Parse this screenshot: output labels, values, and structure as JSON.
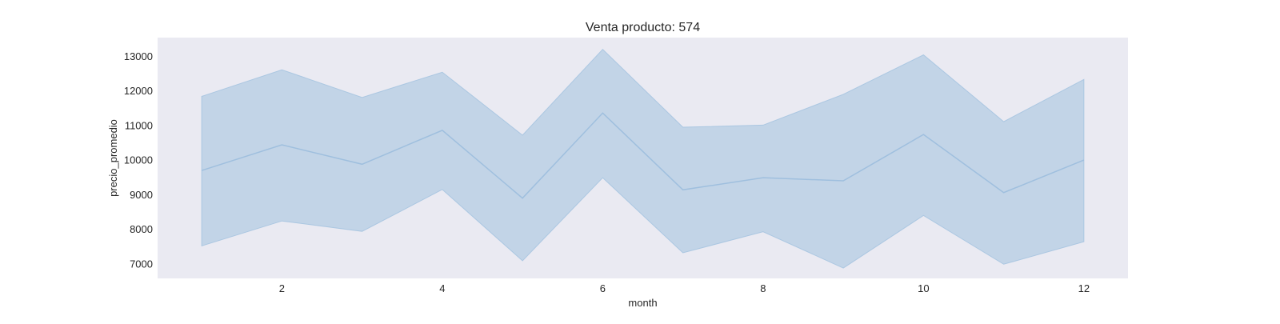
{
  "chart_data": {
    "type": "area",
    "title": "Venta producto: 574",
    "xlabel": "month",
    "ylabel": "precio_promedio",
    "x": [
      1,
      2,
      3,
      4,
      5,
      6,
      7,
      8,
      9,
      10,
      11,
      12
    ],
    "series": [
      {
        "values": [
          9700,
          10440,
          9880,
          10860,
          8900,
          11360,
          9140,
          9490,
          9400,
          10740,
          9060,
          10000
        ],
        "lower": [
          7520,
          8240,
          7940,
          9150,
          7090,
          9490,
          7320,
          7930,
          6880,
          8400,
          6990,
          7640
        ],
        "upper": [
          11840,
          12610,
          11810,
          12540,
          10720,
          13200,
          10950,
          11010,
          11900,
          13040,
          11110,
          12330
        ]
      }
    ],
    "xlim": [
      0.45,
      12.55
    ],
    "ylim": [
      6580,
      13540
    ],
    "xticks": [
      2,
      4,
      6,
      8,
      10,
      12
    ],
    "yticks": [
      7000,
      8000,
      9000,
      10000,
      11000,
      12000,
      13000
    ],
    "grid": false,
    "colors": {
      "plot_background": "#eaeaf2",
      "band_fill": "#a6c4e0",
      "line": "#9fbfde"
    }
  }
}
